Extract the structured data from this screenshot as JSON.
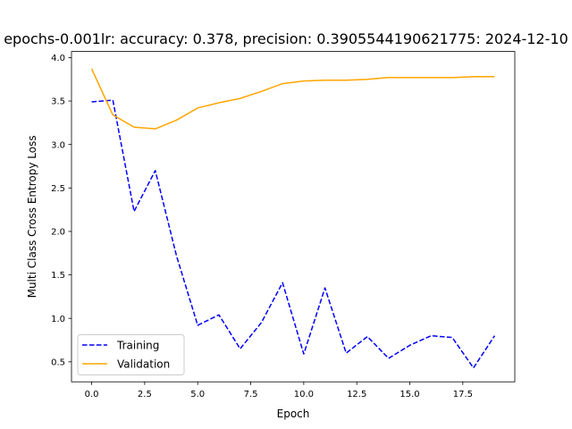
{
  "chart_data": {
    "type": "line",
    "title": "epochs-0.001lr: accuracy: 0.378, precision: 0.3905544190621775: 2024-12-10",
    "xlabel": "Epoch",
    "ylabel": "Multi Class Cross Entropy Loss",
    "xlim": [
      -0.95,
      19.95
    ],
    "ylim": [
      0.27,
      4.07
    ],
    "x_ticks": [
      0.0,
      2.5,
      5.0,
      7.5,
      10.0,
      12.5,
      15.0,
      17.5
    ],
    "x_tick_labels": [
      "0.0",
      "2.5",
      "5.0",
      "7.5",
      "10.0",
      "12.5",
      "15.0",
      "17.5"
    ],
    "y_ticks": [
      0.5,
      1.0,
      1.5,
      2.0,
      2.5,
      3.0,
      3.5,
      4.0
    ],
    "y_tick_labels": [
      "0.5",
      "1.0",
      "1.5",
      "2.0",
      "2.5",
      "3.0",
      "3.5",
      "4.0"
    ],
    "grid": false,
    "legend_position": "lower-left",
    "x": [
      0,
      1,
      2,
      3,
      4,
      5,
      6,
      7,
      8,
      9,
      10,
      11,
      12,
      13,
      14,
      15,
      16,
      17,
      18,
      19
    ],
    "series": [
      {
        "name": "Training",
        "color": "#0000ff",
        "style": "dashed",
        "values": [
          3.49,
          3.51,
          2.23,
          2.7,
          1.72,
          0.92,
          1.04,
          0.65,
          0.95,
          1.41,
          0.59,
          1.35,
          0.6,
          0.79,
          0.54,
          0.69,
          0.8,
          0.78,
          0.43,
          0.8
        ]
      },
      {
        "name": "Validation",
        "color": "#ffa500",
        "style": "solid",
        "values": [
          3.87,
          3.34,
          3.2,
          3.18,
          3.28,
          3.42,
          3.48,
          3.53,
          3.61,
          3.7,
          3.73,
          3.74,
          3.74,
          3.75,
          3.77,
          3.77,
          3.77,
          3.77,
          3.78,
          3.78
        ]
      }
    ]
  }
}
